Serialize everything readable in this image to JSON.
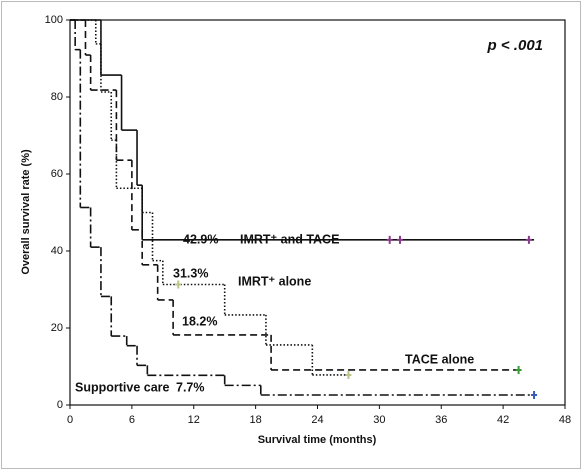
{
  "chart_data": {
    "type": "step",
    "annotation": "p < .001",
    "xlabel": "Survival time (months)",
    "ylabel": "Overall survival rate (%)",
    "xlim": [
      0,
      48
    ],
    "xticks": [
      0,
      6,
      12,
      18,
      24,
      30,
      36,
      42,
      48
    ],
    "ylim": [
      0,
      100
    ],
    "yticks": [
      0,
      20,
      40,
      60,
      80,
      100
    ],
    "series": [
      {
        "name": "IMRT⁺ and TACE",
        "label": "42.9%",
        "style": "solid",
        "color": "#111111",
        "censor_color": "#8a3a8a",
        "x": [
          0,
          3,
          5,
          6.5,
          7
        ],
        "values": [
          100,
          85.7,
          71.4,
          57.1,
          42.9
        ],
        "x_end": 45,
        "censored_x": [
          31,
          32,
          44.5
        ]
      },
      {
        "name": "IMRT⁺ alone",
        "label": "31.3%",
        "style": "dotted",
        "color": "#111111",
        "censor_color": "#b9c48a",
        "x": [
          0,
          2.5,
          3,
          4,
          4.5,
          7,
          8,
          9,
          15,
          19,
          23.5
        ],
        "values": [
          100,
          93.8,
          81.3,
          68.8,
          56.3,
          50,
          37.5,
          31.3,
          23.4,
          15.6,
          7.8
        ],
        "x_end": 27,
        "censored_x": [
          10.5,
          27
        ]
      },
      {
        "name": "TACE alone",
        "label": "18.2%",
        "style": "dashed",
        "color": "#111111",
        "censor_color": "#3a9a3a",
        "x": [
          0,
          1.5,
          2,
          4.5,
          6,
          7,
          8.5,
          10,
          19.5
        ],
        "values": [
          100,
          90.9,
          81.8,
          63.6,
          45.5,
          36.4,
          27.3,
          18.2,
          9.1
        ],
        "x_end": 43.5,
        "censored_x": [
          43.5
        ]
      },
      {
        "name": "Supportive care",
        "label": "7.7%",
        "style": "dashdot",
        "color": "#111111",
        "censor_color": "#3a5ab8",
        "x": [
          0,
          0.5,
          1,
          2,
          3,
          4,
          5.5,
          6.5,
          7.5,
          15,
          18.5
        ],
        "values": [
          100,
          92.3,
          51.3,
          41,
          28.2,
          17.9,
          15.4,
          10.3,
          7.7,
          5.1,
          2.6
        ],
        "x_end": 45,
        "censored_x": [
          45
        ]
      }
    ]
  }
}
